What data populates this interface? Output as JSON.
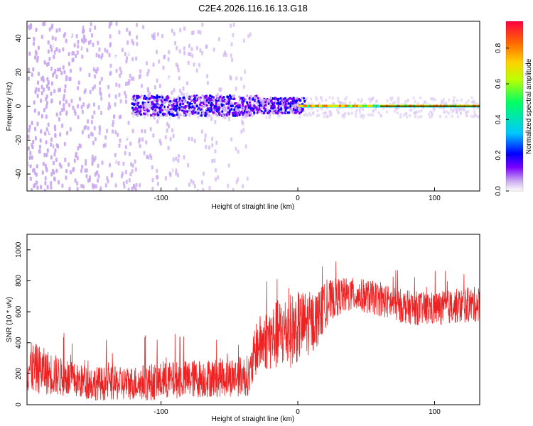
{
  "title": "C2E4.2026.116.16.13.G18",
  "chart_data": [
    {
      "type": "heatmap",
      "xlabel": "Height of straight line (km)",
      "ylabel": "Frequency (Hz)",
      "xlim": [
        -198,
        133
      ],
      "ylim": [
        -50,
        50
      ],
      "xticks": [
        -100,
        0,
        100
      ],
      "yticks": [
        -40,
        -20,
        0,
        20,
        40
      ],
      "colorbar": {
        "label": "Normalized spectral amplitude",
        "range": [
          0,
          0.95
        ],
        "ticks": [
          0.0,
          0.2,
          0.4,
          0.6,
          0.8
        ],
        "colors": [
          "#ffffff",
          "#c9a8f0",
          "#7a00ff",
          "#0000ff",
          "#00c8ff",
          "#00ff66",
          "#bfff00",
          "#ffd000",
          "#ff6a00",
          "#ff0040"
        ]
      },
      "grid": false,
      "description_regions": {
        "noise_region_x": [
          -198,
          -35
        ],
        "dense_center_line_x": [
          -122,
          133
        ],
        "dominant_frequency": 0
      }
    },
    {
      "type": "line",
      "xlabel": "Height of straight line (km)",
      "ylabel": "SNR (10 * v/v)",
      "xlim": [
        -198,
        133
      ],
      "ylim": [
        0,
        1100
      ],
      "xticks": [
        -100,
        0,
        100
      ],
      "yticks": [
        0,
        200,
        400,
        600,
        800,
        1000
      ],
      "line_color": "#ee2222",
      "grid": false,
      "x": [
        -198,
        -190,
        -180,
        -170,
        -160,
        -150,
        -140,
        -130,
        -120,
        -110,
        -100,
        -90,
        -80,
        -70,
        -60,
        -50,
        -40,
        -35,
        -30,
        -25,
        -20,
        -15,
        -10,
        -5,
        0,
        5,
        10,
        15,
        20,
        25,
        30,
        40,
        50,
        60,
        70,
        80,
        90,
        100,
        110,
        120,
        133
      ],
      "y": [
        240,
        230,
        200,
        170,
        150,
        140,
        135,
        135,
        140,
        145,
        150,
        160,
        165,
        170,
        175,
        180,
        185,
        190,
        380,
        410,
        430,
        450,
        470,
        480,
        500,
        520,
        530,
        560,
        640,
        680,
        700,
        710,
        700,
        680,
        650,
        630,
        620,
        620,
        630,
        640,
        650
      ],
      "spread": [
        170,
        160,
        140,
        120,
        110,
        110,
        110,
        110,
        110,
        120,
        120,
        120,
        125,
        125,
        125,
        130,
        130,
        135,
        180,
        190,
        210,
        230,
        240,
        240,
        230,
        220,
        200,
        180,
        150,
        130,
        120,
        110,
        110,
        110,
        110,
        110,
        110,
        110,
        110,
        115,
        115
      ]
    }
  ]
}
